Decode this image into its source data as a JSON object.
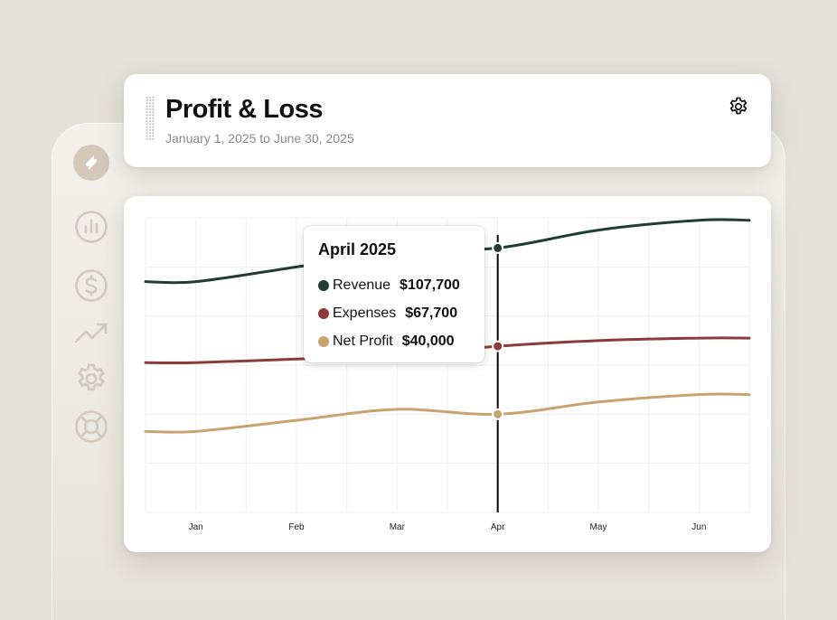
{
  "header": {
    "title": "Profit & Loss",
    "date_range": "January 1, 2025 to June 30, 2025",
    "settings_icon": "gear-icon"
  },
  "sidebar": {
    "logo_icon": "leaf-logo-icon",
    "items": [
      {
        "icon": "bar-chart-icon"
      },
      {
        "icon": "dollar-icon"
      },
      {
        "icon": "trending-up-icon"
      },
      {
        "icon": "gear-icon"
      },
      {
        "icon": "lifebuoy-icon"
      }
    ]
  },
  "tooltip": {
    "title": "April 2025",
    "rows": [
      {
        "label": "Revenue",
        "value": "$107,700",
        "color": "#1f3d33"
      },
      {
        "label": "Expenses",
        "value": "$67,700",
        "color": "#8b3b3a"
      },
      {
        "label": "Net Profit",
        "value": "$40,000",
        "color": "#c9a36e"
      }
    ]
  },
  "chart_data": {
    "type": "line",
    "x": [
      "Jan",
      "Feb",
      "Mar",
      "Apr",
      "May",
      "Jun"
    ],
    "series": [
      {
        "name": "Revenue",
        "color": "#1f3d33",
        "values": [
          94000,
          100000,
          106000,
          107700,
          115000,
          119000
        ]
      },
      {
        "name": "Expenses",
        "color": "#8b3b3a",
        "values": [
          61000,
          62500,
          64000,
          67700,
          70000,
          71000
        ]
      },
      {
        "name": "Net Profit",
        "color": "#c9a36e",
        "values": [
          33000,
          37500,
          42000,
          40000,
          45000,
          48000
        ]
      }
    ],
    "ylim": [
      0,
      120000
    ],
    "grid": true,
    "highlight_index": 3
  }
}
